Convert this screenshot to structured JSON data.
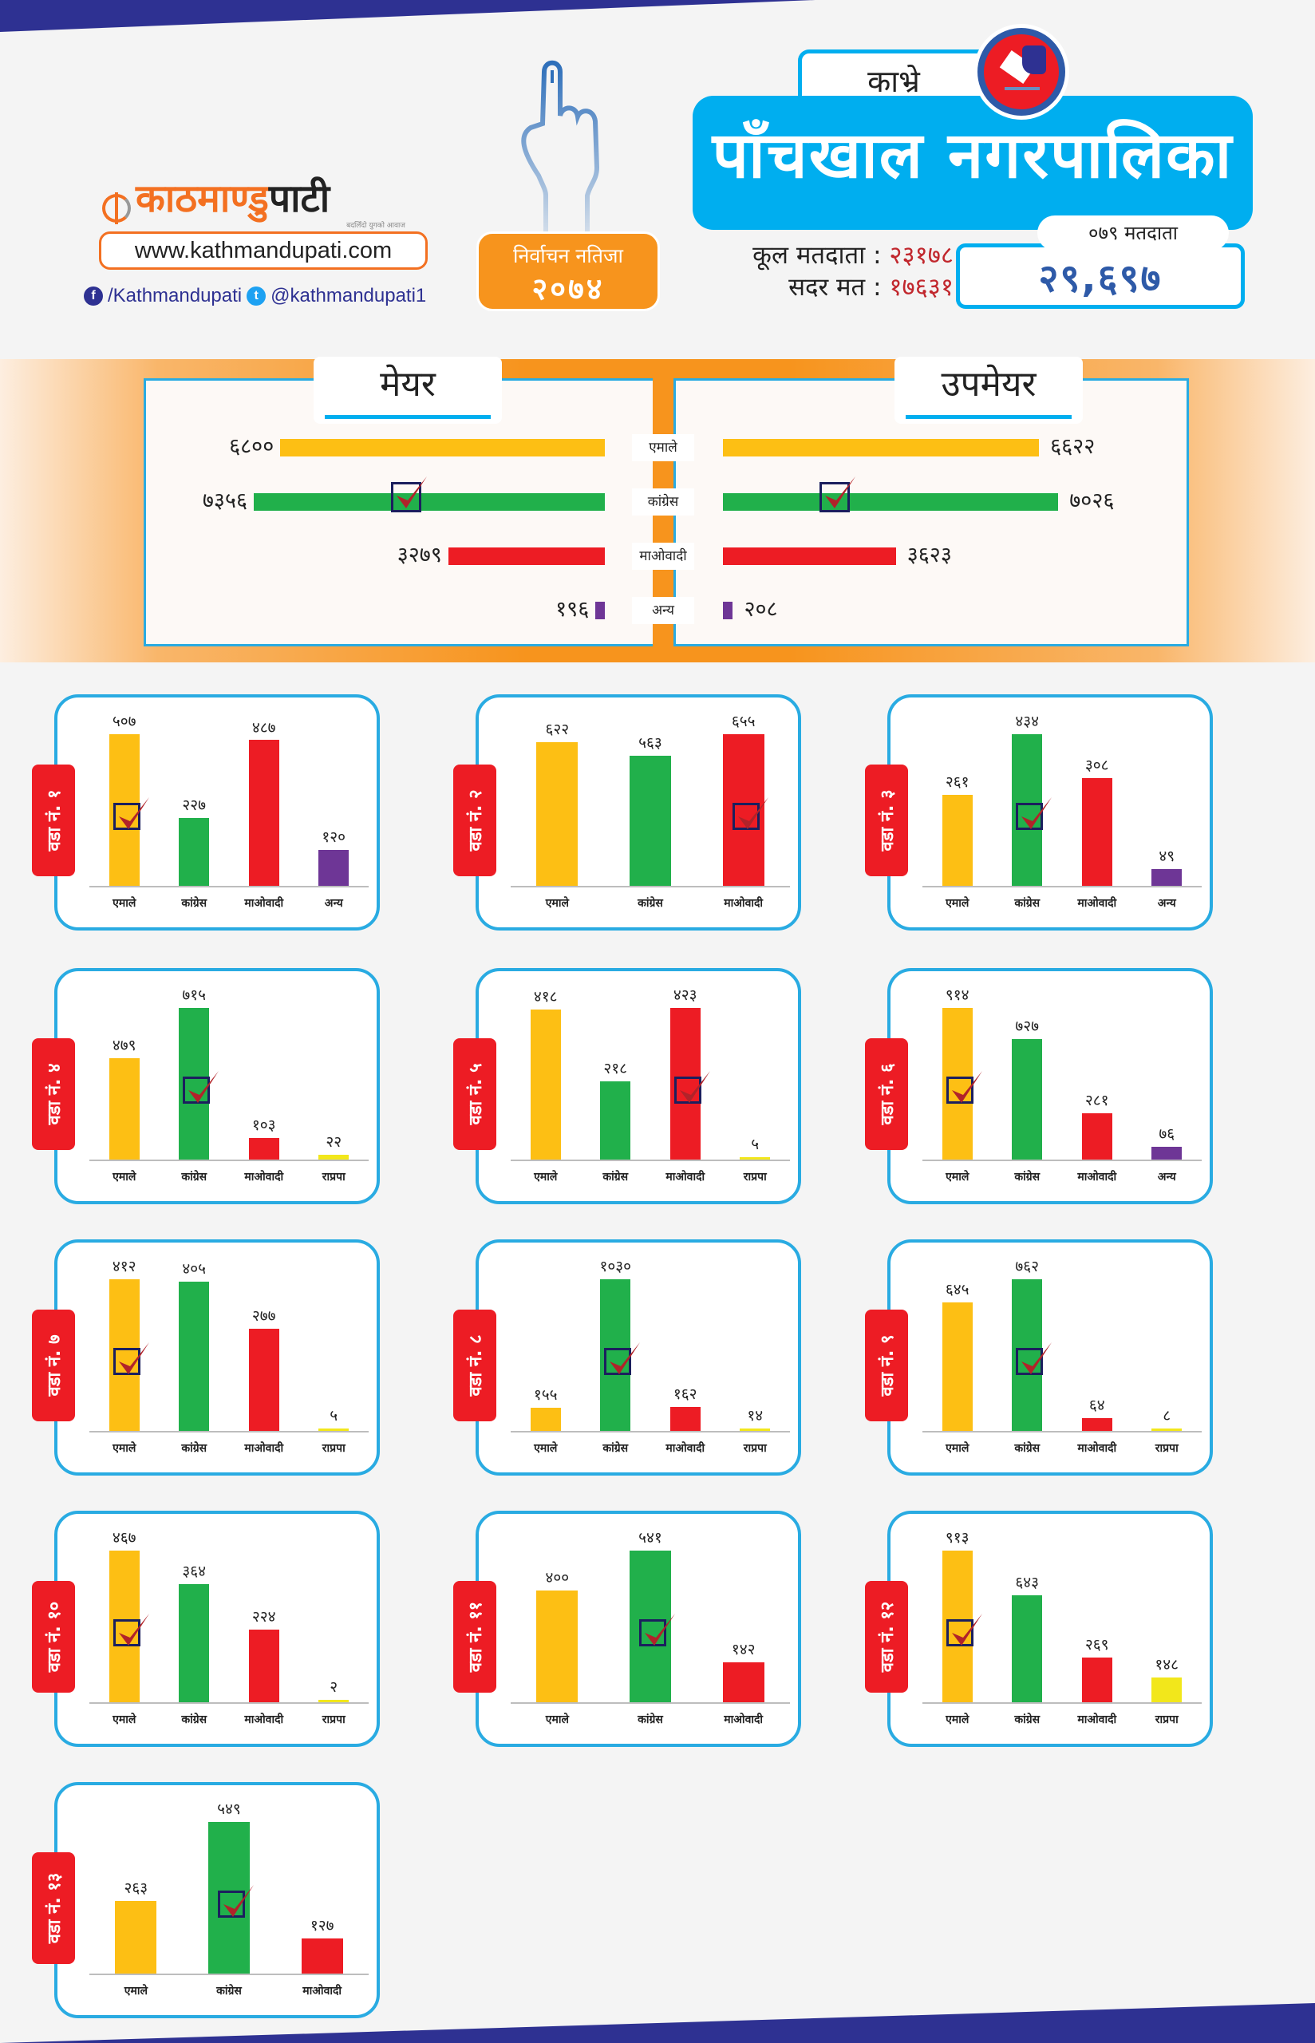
{
  "brand": {
    "name_part1": "काठमाण्डु",
    "name_part2": "पाटी",
    "tagline": "बदलिँदो युगको आवाज",
    "website": "www.kathmandupati.com",
    "facebook": "/Kathmandupati",
    "twitter": "@kathmandupati1",
    "icons": {
      "facebook": "facebook-icon",
      "twitter": "twitter-icon",
      "hand": "voting-finger-icon",
      "emblem": "ballot-box-icon",
      "winner": "checkbox-tick-icon"
    }
  },
  "badge": {
    "line1": "निर्वाचन नतिजा",
    "line2": "२०७४"
  },
  "header": {
    "district": "काभ्रे",
    "title": "पाँचखाल नगरपालिका",
    "total_voters_label": "कूल मतदाता :",
    "total_voters_value": "२३१७८",
    "valid_votes_label": "सदर मत :",
    "valid_votes_value": "१७६३१",
    "voters_079_label": "०७९ मतदाता",
    "voters_079_value": "२९,६९७"
  },
  "colors": {
    "एमाले": "#fdbf14",
    "कांग्रेस": "#21b04b",
    "माओवादी": "#ed1c24",
    "अन्य": "#6e3696",
    "राप्रपा": "#f2e71b",
    "accent_blue": "#00aeef",
    "navy": "#2e3192",
    "orange": "#f7941d"
  },
  "chart_data": [
    {
      "type": "bar",
      "orientation": "horizontal",
      "title": "मेयर",
      "categories": [
        "एमाले",
        "कांग्रेस",
        "माओवादी",
        "अन्य"
      ],
      "values": [
        6800,
        7356,
        3279,
        196
      ],
      "labels": [
        "६८००",
        "७३५६",
        "३२७९",
        "१९६"
      ],
      "winner": "कांग्रेस",
      "xlim": [
        0,
        7356
      ]
    },
    {
      "type": "bar",
      "orientation": "horizontal",
      "title": "उपमेयर",
      "categories": [
        "एमाले",
        "कांग्रेस",
        "माओवादी",
        "अन्य"
      ],
      "values": [
        6622,
        7026,
        3623,
        208
      ],
      "labels": [
        "६६२२",
        "७०२६",
        "३६२३",
        "२०८"
      ],
      "winner": "कांग्रेस",
      "xlim": [
        0,
        7026
      ]
    },
    {
      "type": "bar",
      "title": "वडा नं. १",
      "categories": [
        "एमाले",
        "कांग्रेस",
        "माओवादी",
        "अन्य"
      ],
      "values": [
        507,
        227,
        487,
        120
      ],
      "labels": [
        "५०७",
        "२२७",
        "४८७",
        "१२०"
      ],
      "winner": "एमाले"
    },
    {
      "type": "bar",
      "title": "वडा नं. २",
      "categories": [
        "एमाले",
        "कांग्रेस",
        "माओवादी"
      ],
      "values": [
        622,
        563,
        655
      ],
      "labels": [
        "६२२",
        "५६३",
        "६५५"
      ],
      "winner": "माओवादी"
    },
    {
      "type": "bar",
      "title": "वडा नं. ३",
      "categories": [
        "एमाले",
        "कांग्रेस",
        "माओवादी",
        "अन्य"
      ],
      "values": [
        261,
        434,
        308,
        49
      ],
      "labels": [
        "२६१",
        "४३४",
        "३०८",
        "४९"
      ],
      "winner": "कांग्रेस"
    },
    {
      "type": "bar",
      "title": "वडा नं. ४",
      "categories": [
        "एमाले",
        "कांग्रेस",
        "माओवादी",
        "राप्रपा"
      ],
      "values": [
        479,
        715,
        103,
        22
      ],
      "labels": [
        "४७९",
        "७१५",
        "१०३",
        "२२"
      ],
      "winner": "कांग्रेस"
    },
    {
      "type": "bar",
      "title": "वडा नं. ५",
      "categories": [
        "एमाले",
        "कांग्रेस",
        "माओवादी",
        "राप्रपा"
      ],
      "values": [
        418,
        218,
        423,
        5
      ],
      "labels": [
        "४१८",
        "२१८",
        "४२३",
        "५"
      ],
      "winner": "माओवादी"
    },
    {
      "type": "bar",
      "title": "वडा नं. ६",
      "categories": [
        "एमाले",
        "कांग्रेस",
        "माओवादी",
        "अन्य"
      ],
      "values": [
        914,
        727,
        281,
        76
      ],
      "labels": [
        "९१४",
        "७२७",
        "२८१",
        "७६"
      ],
      "winner": "एमाले"
    },
    {
      "type": "bar",
      "title": "वडा नं. ७",
      "categories": [
        "एमाले",
        "कांग्रेस",
        "माओवादी",
        "राप्रपा"
      ],
      "values": [
        412,
        405,
        277,
        5
      ],
      "labels": [
        "४१२",
        "४०५",
        "२७७",
        "५"
      ],
      "winner": "एमाले"
    },
    {
      "type": "bar",
      "title": "वडा नं. ८",
      "categories": [
        "एमाले",
        "कांग्रेस",
        "माओवादी",
        "राप्रपा"
      ],
      "values": [
        155,
        1030,
        162,
        14
      ],
      "labels": [
        "१५५",
        "१०३०",
        "१६२",
        "१४"
      ],
      "winner": "कांग्रेस"
    },
    {
      "type": "bar",
      "title": "वडा नं. ९",
      "categories": [
        "एमाले",
        "कांग्रेस",
        "माओवादी",
        "राप्रपा"
      ],
      "values": [
        645,
        762,
        64,
        8
      ],
      "labels": [
        "६४५",
        "७६२",
        "६४",
        "८"
      ],
      "winner": "कांग्रेस"
    },
    {
      "type": "bar",
      "title": "वडा नं. १०",
      "categories": [
        "एमाले",
        "कांग्रेस",
        "माओवादी",
        "राप्रपा"
      ],
      "values": [
        467,
        364,
        224,
        2
      ],
      "labels": [
        "४६७",
        "३६४",
        "२२४",
        "२"
      ],
      "winner": "एमाले"
    },
    {
      "type": "bar",
      "title": "वडा नं. ११",
      "categories": [
        "एमाले",
        "कांग्रेस",
        "माओवादी"
      ],
      "values": [
        400,
        541,
        142
      ],
      "labels": [
        "४००",
        "५४१",
        "१४२"
      ],
      "winner": "कांग्रेस"
    },
    {
      "type": "bar",
      "title": "वडा नं. १२",
      "categories": [
        "एमाले",
        "कांग्रेस",
        "माओवादी",
        "राप्रपा"
      ],
      "values": [
        913,
        643,
        269,
        148
      ],
      "labels": [
        "९१३",
        "६४३",
        "२६९",
        "१४८"
      ],
      "winner": "एमाले"
    },
    {
      "type": "bar",
      "title": "वडा नं. १३",
      "categories": [
        "एमाले",
        "कांग्रेस",
        "माओवादी"
      ],
      "values": [
        263,
        549,
        127
      ],
      "labels": [
        "२६३",
        "५४९",
        "१२७"
      ],
      "winner": "कांग्रेस"
    }
  ]
}
